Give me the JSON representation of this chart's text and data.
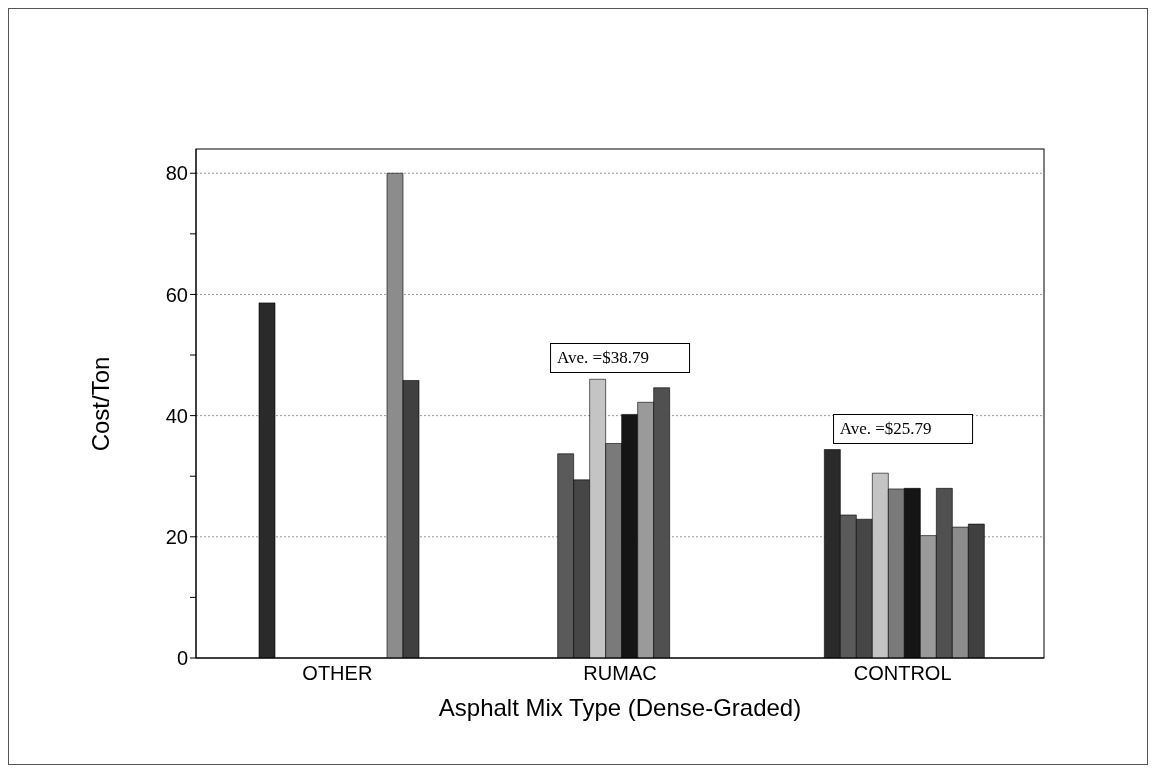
{
  "chart_data": {
    "type": "bar",
    "xlabel": "Asphalt Mix Type (Dense-Graded)",
    "ylabel": "Cost/Ton",
    "categories": [
      "OTHER",
      "RUMAC",
      "CONTROL"
    ],
    "series": [
      {
        "color": "#2a2a2a",
        "values": [
          58.6,
          null,
          34.4
        ]
      },
      {
        "color": "#5a5a5a",
        "values": [
          null,
          33.7,
          23.6
        ]
      },
      {
        "color": "#464646",
        "values": [
          null,
          29.4,
          22.9
        ]
      },
      {
        "color": "#c4c4c4",
        "values": [
          null,
          46.0,
          30.5
        ]
      },
      {
        "color": "#7a7a7a",
        "values": [
          null,
          35.4,
          27.9
        ]
      },
      {
        "color": "#151515",
        "values": [
          null,
          40.2,
          28.0
        ]
      },
      {
        "color": "#9a9a9a",
        "values": [
          null,
          42.2,
          20.2
        ]
      },
      {
        "color": "#505050",
        "values": [
          null,
          44.6,
          28.0
        ]
      },
      {
        "color": "#8c8c8c",
        "values": [
          80.0,
          null,
          21.6
        ]
      },
      {
        "color": "#404040",
        "values": [
          45.8,
          null,
          22.1
        ]
      }
    ],
    "ylim": [
      0,
      84
    ],
    "yticks": [
      0,
      {
        "value": 10,
        "label": null
      },
      20,
      {
        "value": 30,
        "label": null
      },
      40,
      {
        "value": 50,
        "label": null
      },
      60,
      {
        "value": 70,
        "label": null
      },
      80
    ],
    "grid": "y",
    "annotations": [
      "Ave. =$38.79",
      "Ave. =$25.79"
    ]
  }
}
